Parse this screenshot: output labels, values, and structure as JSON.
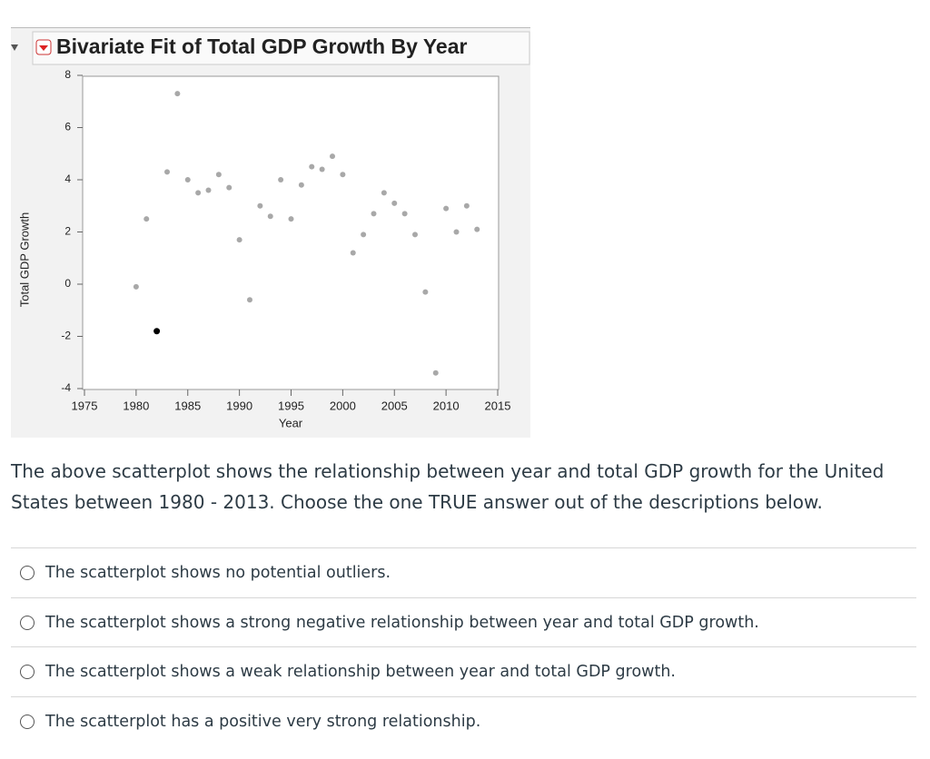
{
  "chart_data": {
    "type": "scatter",
    "title": "Bivariate Fit of Total GDP Growth By Year",
    "x_label": "Year",
    "y_label": "Total GDP Growth",
    "x": [
      1980,
      1981,
      1982,
      1983,
      1984,
      1985,
      1986,
      1987,
      1988,
      1989,
      1990,
      1991,
      1992,
      1993,
      1994,
      1995,
      1996,
      1997,
      1998,
      1999,
      2000,
      2001,
      2002,
      2003,
      2004,
      2005,
      2006,
      2007,
      2008,
      2009,
      2010,
      2011,
      2012,
      2013
    ],
    "values": [
      -0.1,
      2.5,
      -1.8,
      4.3,
      7.3,
      4.0,
      3.5,
      3.6,
      4.2,
      3.7,
      1.7,
      -0.6,
      3.0,
      2.6,
      4.0,
      2.5,
      3.8,
      4.5,
      4.4,
      4.9,
      4.2,
      1.2,
      1.9,
      2.7,
      3.5,
      3.1,
      2.7,
      1.9,
      -0.3,
      -3.4,
      2.9,
      2.0,
      3.0,
      2.1
    ],
    "color": "#a8a8a8",
    "highlight_color": "#000000",
    "highlight": [
      1982
    ],
    "xlim": [
      1975,
      2015
    ],
    "xticks": [
      1975,
      1980,
      1985,
      1990,
      1995,
      2000,
      2005,
      2010,
      2015
    ],
    "ylim": [
      -4,
      8
    ],
    "yticks": [
      -4,
      -2,
      0,
      2,
      4,
      6,
      8
    ],
    "grid": false
  },
  "question": {
    "prompt": "The above scatterplot shows the relationship between year and total GDP growth for the United States between 1980 - 2013. Choose the one TRUE answer out of the descriptions below.",
    "options": [
      "The scatterplot shows no potential outliers.",
      "The scatterplot shows a strong negative relationship between year and total GDP growth.",
      "The scatterplot shows a weak relationship between year and total GDP growth.",
      "The scatterplot has a positive very strong relationship."
    ]
  }
}
